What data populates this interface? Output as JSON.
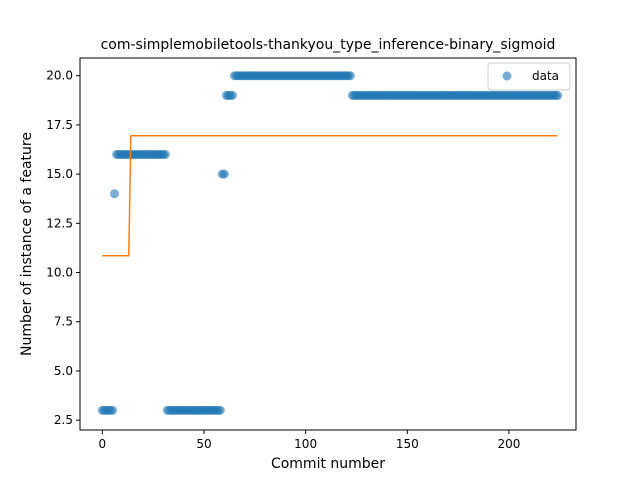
{
  "chart_data": {
    "type": "scatter",
    "title": "com-simplemobiletools-thankyou_type_inference-binary_sigmoid",
    "xlabel": "Commit number",
    "ylabel": "Number of instance of a feature",
    "xlim": [
      -11,
      233
    ],
    "ylim": [
      2.0,
      20.9
    ],
    "xticks": [
      0,
      50,
      100,
      150,
      200
    ],
    "yticks": [
      2.5,
      5.0,
      7.5,
      10.0,
      12.5,
      15.0,
      17.5,
      20.0
    ],
    "xtick_labels": [
      "0",
      "50",
      "100",
      "150",
      "200"
    ],
    "ytick_labels": [
      "2.5",
      "5.0",
      "7.5",
      "10.0",
      "12.5",
      "15.0",
      "17.5",
      "20.0"
    ],
    "grid": false,
    "legend": {
      "position": "top-right",
      "entries": [
        "data"
      ]
    },
    "colors": {
      "data": "#1f77b4",
      "fit": "#ff7f0e"
    },
    "series": [
      {
        "name": "data",
        "kind": "scatter",
        "segments": [
          {
            "x_start": 0,
            "x_end": 5,
            "y": 3
          },
          {
            "x_start": 6,
            "x_end": 6,
            "y": 14
          },
          {
            "x_start": 7,
            "x_end": 31,
            "y": 16
          },
          {
            "x_start": 32,
            "x_end": 58,
            "y": 3
          },
          {
            "x_start": 59,
            "x_end": 60,
            "y": 15
          },
          {
            "x_start": 61,
            "x_end": 64,
            "y": 19
          },
          {
            "x_start": 65,
            "x_end": 122,
            "y": 20
          },
          {
            "x_start": 123,
            "x_end": 224,
            "y": 19
          }
        ]
      },
      {
        "kind": "line",
        "points": [
          [
            0,
            10.85
          ],
          [
            13,
            10.85
          ],
          [
            14,
            16.95
          ],
          [
            224,
            16.95
          ]
        ]
      }
    ]
  }
}
